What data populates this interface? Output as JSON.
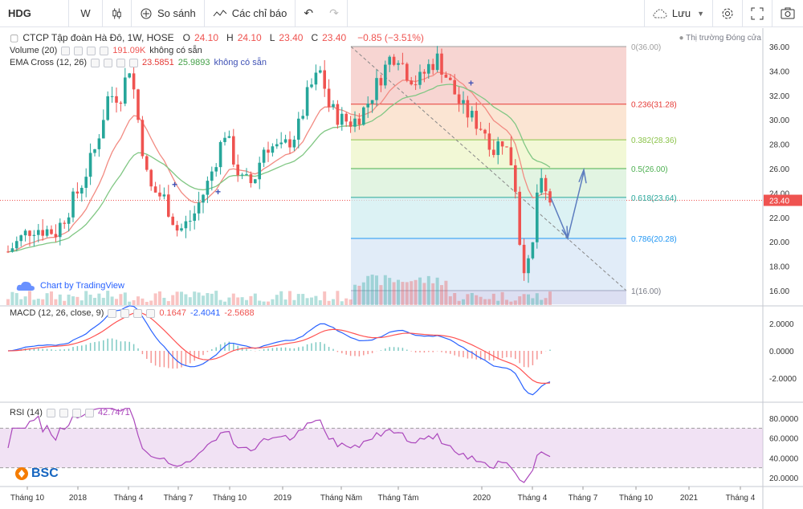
{
  "toolbar": {
    "symbol": "HDG",
    "interval": "W",
    "compare_label": "So sánh",
    "indicators_label": "Các chỉ báo",
    "save_label": "Lưu"
  },
  "main_legend": {
    "title": "CTCP Tập đoàn Hà Đô, 1W, HOSE",
    "o_label": "O",
    "o_value": "24.10",
    "h_label": "H",
    "h_value": "24.10",
    "l_label": "L",
    "l_value": "23.40",
    "c_label": "C",
    "c_value": "23.40",
    "change": "−0.85 (−3.51%)",
    "market_status": "Thị trường Đóng cửa"
  },
  "volume_legend": {
    "name": "Volume (20)",
    "value": "191.09K",
    "note": "không có sẵn"
  },
  "ema_legend": {
    "name": "EMA Cross (12, 26)",
    "v1": "23.5851",
    "v2": "25.9893",
    "note": "không có sẵn"
  },
  "watermark": "Chart by TradingView",
  "macd_legend": {
    "name": "MACD (12, 26, close, 9)",
    "v1": "0.1647",
    "v2": "-2.4041",
    "v3": "-2.5688"
  },
  "rsi_legend": {
    "name": "RSI (14)",
    "value": "42.7471"
  },
  "logo_text": "BSC",
  "price_label": "23.40",
  "price_axis": [
    "36.00",
    "34.00",
    "32.00",
    "30.00",
    "28.00",
    "26.00",
    "24.00",
    "22.00",
    "20.00",
    "18.00",
    "16.00"
  ],
  "macd_axis": [
    "2.0000",
    "0.0000",
    "-2.0000"
  ],
  "rsi_axis": [
    "80.0000",
    "60.0000",
    "40.0000",
    "20.0000"
  ],
  "time_axis": [
    "Tháng 10",
    "2018",
    "Tháng 4",
    "Tháng 7",
    "Tháng 10",
    "2019",
    "Tháng Năm",
    "Tháng Tám",
    "2020",
    "Tháng 4",
    "Tháng 7",
    "Tháng 10",
    "2021",
    "Tháng 4"
  ],
  "fib_levels": [
    {
      "label": "0(36.00)",
      "price": 36.0,
      "color": "#9e9e9e"
    },
    {
      "label": "0.236(31.28)",
      "price": 31.28,
      "color": "#e53935"
    },
    {
      "label": "0.382(28.36)",
      "price": 28.36,
      "color": "#8bc34a"
    },
    {
      "label": "0.5(26.00)",
      "price": 26.0,
      "color": "#4caf50"
    },
    {
      "label": "0.618(23.64)",
      "price": 23.64,
      "color": "#26a69a"
    },
    {
      "label": "0.786(20.28)",
      "price": 20.28,
      "color": "#2196f3"
    },
    {
      "label": "1(16.00)",
      "price": 16.0,
      "color": "#787b86"
    }
  ],
  "colors": {
    "up": "#26a69a",
    "down": "#ef5350",
    "ema_fast": "#f28b82",
    "ema_slow": "#81c784",
    "macd": "#2962ff",
    "signal": "#ff5252",
    "rsi": "#ab47bc"
  }
}
